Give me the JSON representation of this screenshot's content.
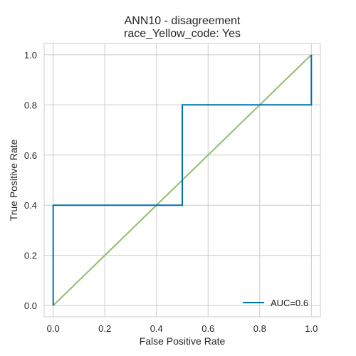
{
  "chart_data": {
    "type": "line",
    "title": "ANN10 - disagreement",
    "subtitle": "race_Yellow_code: Yes",
    "xlabel": "False Positive Rate",
    "ylabel": "True Positive Rate",
    "xlim": [
      -0.035,
      1.035
    ],
    "ylim": [
      -0.045,
      1.045
    ],
    "xticks": [
      0.0,
      0.2,
      0.4,
      0.6,
      0.8,
      1.0
    ],
    "yticks": [
      0.0,
      0.2,
      0.4,
      0.6,
      0.8,
      1.0
    ],
    "xtick_labels": [
      "0.0",
      "0.2",
      "0.4",
      "0.6",
      "0.8",
      "1.0"
    ],
    "ytick_labels": [
      "0.0",
      "0.2",
      "0.4",
      "0.6",
      "0.8",
      "1.0"
    ],
    "grid": true,
    "legend_position": "lower-right",
    "series": [
      {
        "name": "AUC=0.6",
        "color": "#0072b2",
        "x": [
          0.0,
          0.0,
          0.5,
          0.5,
          1.0,
          1.0
        ],
        "y": [
          0.0,
          0.4,
          0.4,
          0.8,
          0.8,
          1.0
        ]
      },
      {
        "color": "#8fbf6b",
        "x": [
          0.0,
          1.0
        ],
        "y": [
          0.0,
          1.0
        ]
      }
    ]
  }
}
